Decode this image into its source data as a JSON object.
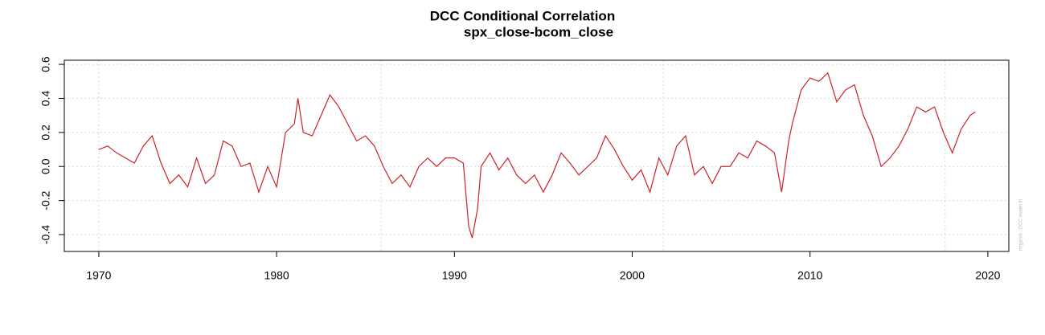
{
  "chart_data": {
    "type": "line",
    "title": "DCC Conditional Correlation",
    "subtitle": "spx_close-bcom_close",
    "watermark": "rmgarch : DCC model fit",
    "color": "#cc2229",
    "x": [
      1970,
      1970.5,
      1971,
      1971.5,
      1972,
      1972.5,
      1973,
      1973.5,
      1974,
      1974.5,
      1975,
      1975.5,
      1976,
      1976.5,
      1977,
      1977.5,
      1978,
      1978.5,
      1979,
      1979.5,
      1980,
      1980.5,
      1981,
      1981.2,
      1981.5,
      1982,
      1982.5,
      1983,
      1983.5,
      1984,
      1984.5,
      1985,
      1985.5,
      1986,
      1986.5,
      1987,
      1987.5,
      1988,
      1988.5,
      1989,
      1989.5,
      1990,
      1990.5,
      1990.8,
      1991,
      1991.3,
      1991.5,
      1992,
      1992.5,
      1993,
      1993.5,
      1994,
      1994.5,
      1995,
      1995.5,
      1996,
      1996.5,
      1997,
      1997.5,
      1998,
      1998.5,
      1999,
      1999.5,
      2000,
      2000.5,
      2001,
      2001.5,
      2002,
      2002.5,
      2003,
      2003.5,
      2004,
      2004.5,
      2005,
      2005.5,
      2006,
      2006.5,
      2007,
      2007.5,
      2008,
      2008.4,
      2008.8,
      2009,
      2009.5,
      2010,
      2010.5,
      2011,
      2011.5,
      2012,
      2012.5,
      2013,
      2013.5,
      2014,
      2014.5,
      2015,
      2015.5,
      2016,
      2016.5,
      2017,
      2017.5,
      2018,
      2018.5,
      2019,
      2019.3
    ],
    "values": [
      0.1,
      0.12,
      0.08,
      0.05,
      0.02,
      0.12,
      0.18,
      0.02,
      -0.1,
      -0.05,
      -0.12,
      0.05,
      -0.1,
      -0.05,
      0.15,
      0.12,
      0.0,
      0.02,
      -0.15,
      0.0,
      -0.12,
      0.2,
      0.25,
      0.4,
      0.2,
      0.18,
      0.3,
      0.42,
      0.35,
      0.25,
      0.15,
      0.18,
      0.12,
      0.0,
      -0.1,
      -0.05,
      -0.12,
      0.0,
      0.05,
      0.0,
      0.05,
      0.05,
      0.02,
      -0.35,
      -0.42,
      -0.25,
      0.0,
      0.08,
      -0.02,
      0.05,
      -0.05,
      -0.1,
      -0.05,
      -0.15,
      -0.05,
      0.08,
      0.02,
      -0.05,
      0.0,
      0.05,
      0.18,
      0.1,
      0.0,
      -0.08,
      -0.02,
      -0.15,
      0.05,
      -0.05,
      0.12,
      0.18,
      -0.05,
      0.0,
      -0.1,
      0.0,
      0.0,
      0.08,
      0.05,
      0.15,
      0.12,
      0.08,
      -0.15,
      0.15,
      0.25,
      0.45,
      0.52,
      0.5,
      0.55,
      0.38,
      0.45,
      0.48,
      0.3,
      0.18,
      0.0,
      0.05,
      0.12,
      0.22,
      0.35,
      0.32,
      0.35,
      0.2,
      0.08,
      0.22,
      0.3,
      0.32
    ],
    "xlim": [
      1968.06,
      2021.18
    ],
    "xticks": [
      1970,
      1980,
      1990,
      2000,
      2010,
      2020
    ],
    "xgrid": [
      1970,
      1985.87,
      2001.74,
      2017.6
    ],
    "ylim": [
      -0.499,
      0.624
    ],
    "yticks": [
      -0.4,
      -0.2,
      {
        "value": 0,
        "label": "0.0"
      },
      0.2,
      0.4,
      0.6
    ],
    "grid": true
  }
}
